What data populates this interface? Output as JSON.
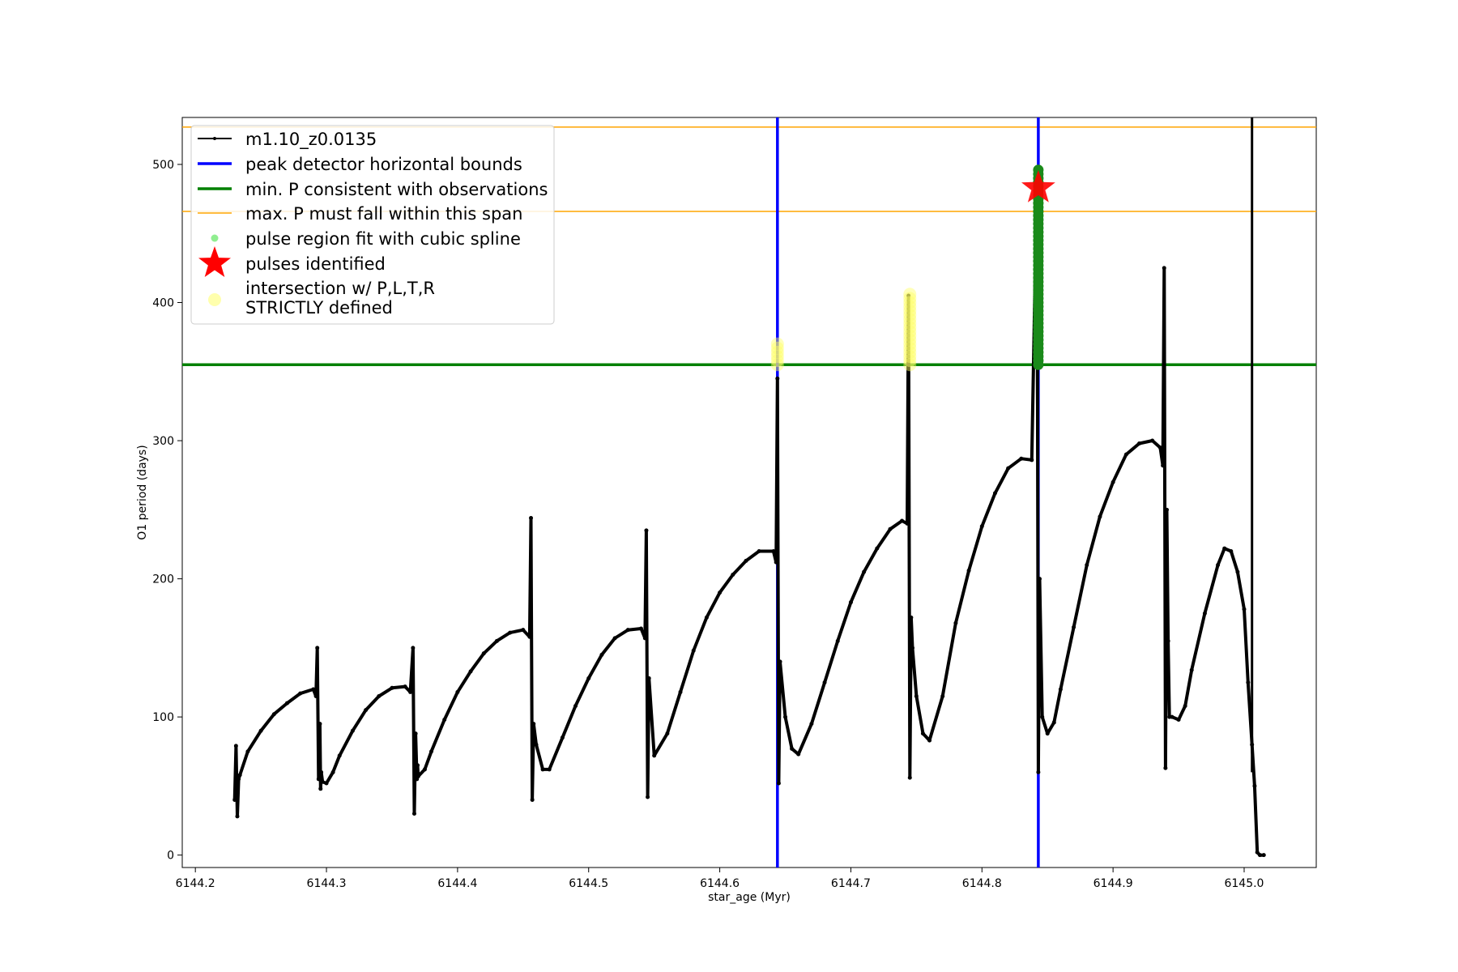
{
  "chart_data": {
    "type": "line",
    "xlabel": "star_age (Myr)",
    "ylabel": "O1 period (days)",
    "xlim": [
      6144.19,
      6145.055
    ],
    "ylim": [
      -9,
      534
    ],
    "x_ticks": [
      "6144.2",
      "6144.3",
      "6144.4",
      "6144.5",
      "6144.6",
      "6144.7",
      "6144.8",
      "6144.9",
      "6145.0"
    ],
    "y_ticks": [
      "0",
      "100",
      "200",
      "300",
      "400",
      "500"
    ],
    "grid": false,
    "legend_position": "upper-left",
    "legend": [
      {
        "label": "m1.10_z0.0135",
        "marker": "line-dot",
        "color": "#000000"
      },
      {
        "label": "peak detector horizontal bounds",
        "marker": "line-thick",
        "color": "#0000ff"
      },
      {
        "label": "min. P consistent with observations",
        "marker": "line-thick",
        "color": "#008000"
      },
      {
        "label": "max. P must fall within this span",
        "marker": "line-thin",
        "color": "#ffa500"
      },
      {
        "label": "pulse region fit with cubic spline",
        "marker": "dot",
        "color": "#90ee90"
      },
      {
        "label": "pulses identified",
        "marker": "star",
        "color": "#ff0000"
      },
      {
        "label": "intersection w/ P,L,T,R",
        "label2": "STRICTLY defined",
        "marker": "circle",
        "color": "#ffff99"
      }
    ],
    "series": [
      {
        "name": "m1.10_z0.0135",
        "color": "#000000",
        "x": [
          6144.23,
          6144.231,
          6144.232,
          6144.233,
          6144.234,
          6144.24,
          6144.25,
          6144.26,
          6144.27,
          6144.28,
          6144.29,
          6144.292,
          6144.293,
          6144.294,
          6144.295,
          6144.2955,
          6144.296,
          6144.297,
          6144.3,
          6144.305,
          6144.31,
          6144.32,
          6144.33,
          6144.34,
          6144.35,
          6144.36,
          6144.364,
          6144.366,
          6144.367,
          6144.368,
          6144.369,
          6144.3695,
          6144.37,
          6144.375,
          6144.38,
          6144.39,
          6144.4,
          6144.41,
          6144.42,
          6144.43,
          6144.44,
          6144.45,
          6144.455,
          6144.456,
          6144.457,
          6144.458,
          6144.46,
          6144.465,
          6144.47,
          6144.48,
          6144.49,
          6144.5,
          6144.51,
          6144.52,
          6144.53,
          6144.54,
          6144.543,
          6144.544,
          6144.545,
          6144.546,
          6144.55,
          6144.56,
          6144.57,
          6144.58,
          6144.59,
          6144.6,
          6144.61,
          6144.62,
          6144.63,
          6144.641,
          6144.643,
          6144.644,
          6144.645,
          6144.646,
          6144.65,
          6144.655,
          6144.66,
          6144.67,
          6144.68,
          6144.69,
          6144.7,
          6144.71,
          6144.72,
          6144.73,
          6144.739,
          6144.743,
          6144.744,
          6144.745,
          6144.746,
          6144.747,
          6144.75,
          6144.755,
          6144.76,
          6144.77,
          6144.78,
          6144.79,
          6144.8,
          6144.81,
          6144.82,
          6144.83,
          6144.838,
          6144.842,
          6144.843,
          6144.844,
          6144.846,
          6144.85,
          6144.855,
          6144.86,
          6144.87,
          6144.88,
          6144.89,
          6144.9,
          6144.91,
          6144.92,
          6144.93,
          6144.936,
          6144.938,
          6144.939,
          6144.94,
          6144.941,
          6144.942,
          6144.943,
          6144.945,
          6144.95,
          6144.955,
          6144.96,
          6144.97,
          6144.98,
          6144.985,
          6144.99,
          6144.995,
          6145.0,
          6145.003,
          6145.006,
          6145.008,
          6145.01,
          6145.012,
          6145.015
        ],
        "y": [
          40,
          79,
          28,
          55,
          58,
          75,
          90,
          102,
          110,
          117,
          120,
          115,
          150,
          55,
          95,
          48,
          60,
          53,
          52,
          60,
          72,
          90,
          105,
          115,
          121,
          122,
          118,
          150,
          30,
          88,
          55,
          65,
          57,
          62,
          75,
          98,
          118,
          133,
          146,
          155,
          161,
          163,
          158,
          244,
          40,
          95,
          80,
          62,
          62,
          85,
          108,
          128,
          145,
          157,
          163,
          164,
          157,
          235,
          42,
          128,
          72,
          88,
          118,
          148,
          172,
          190,
          203,
          213,
          220,
          220,
          212,
          345,
          52,
          140,
          100,
          77,
          73,
          95,
          125,
          155,
          183,
          205,
          222,
          236,
          242,
          240,
          405,
          56,
          172,
          150,
          115,
          88,
          83,
          115,
          168,
          206,
          238,
          262,
          280,
          287,
          286,
          497,
          60,
          200,
          100,
          88,
          96,
          120,
          165,
          210,
          245,
          270,
          290,
          298,
          300,
          295,
          282,
          425,
          63,
          250,
          155,
          100,
          100,
          98,
          108,
          134,
          175,
          210,
          222,
          220,
          205,
          178,
          125,
          80,
          50,
          2,
          0,
          0
        ]
      }
    ],
    "peak_detector_bounds_x": [
      6144.644,
      6144.843
    ],
    "black_vertical_x": 6145.006,
    "min_P_observations": 355,
    "max_P_span": [
      466,
      527
    ],
    "pulse_spline_x": 6144.843,
    "pulse_spline_y_range": [
      355,
      497
    ],
    "pulses_identified": [
      {
        "x": 6144.843,
        "y": 483
      }
    ],
    "intersection_strict": [
      {
        "x": 6144.644,
        "y_range": [
          355,
          372
        ]
      },
      {
        "x": 6144.745,
        "y_range": [
          355,
          407
        ]
      }
    ]
  }
}
